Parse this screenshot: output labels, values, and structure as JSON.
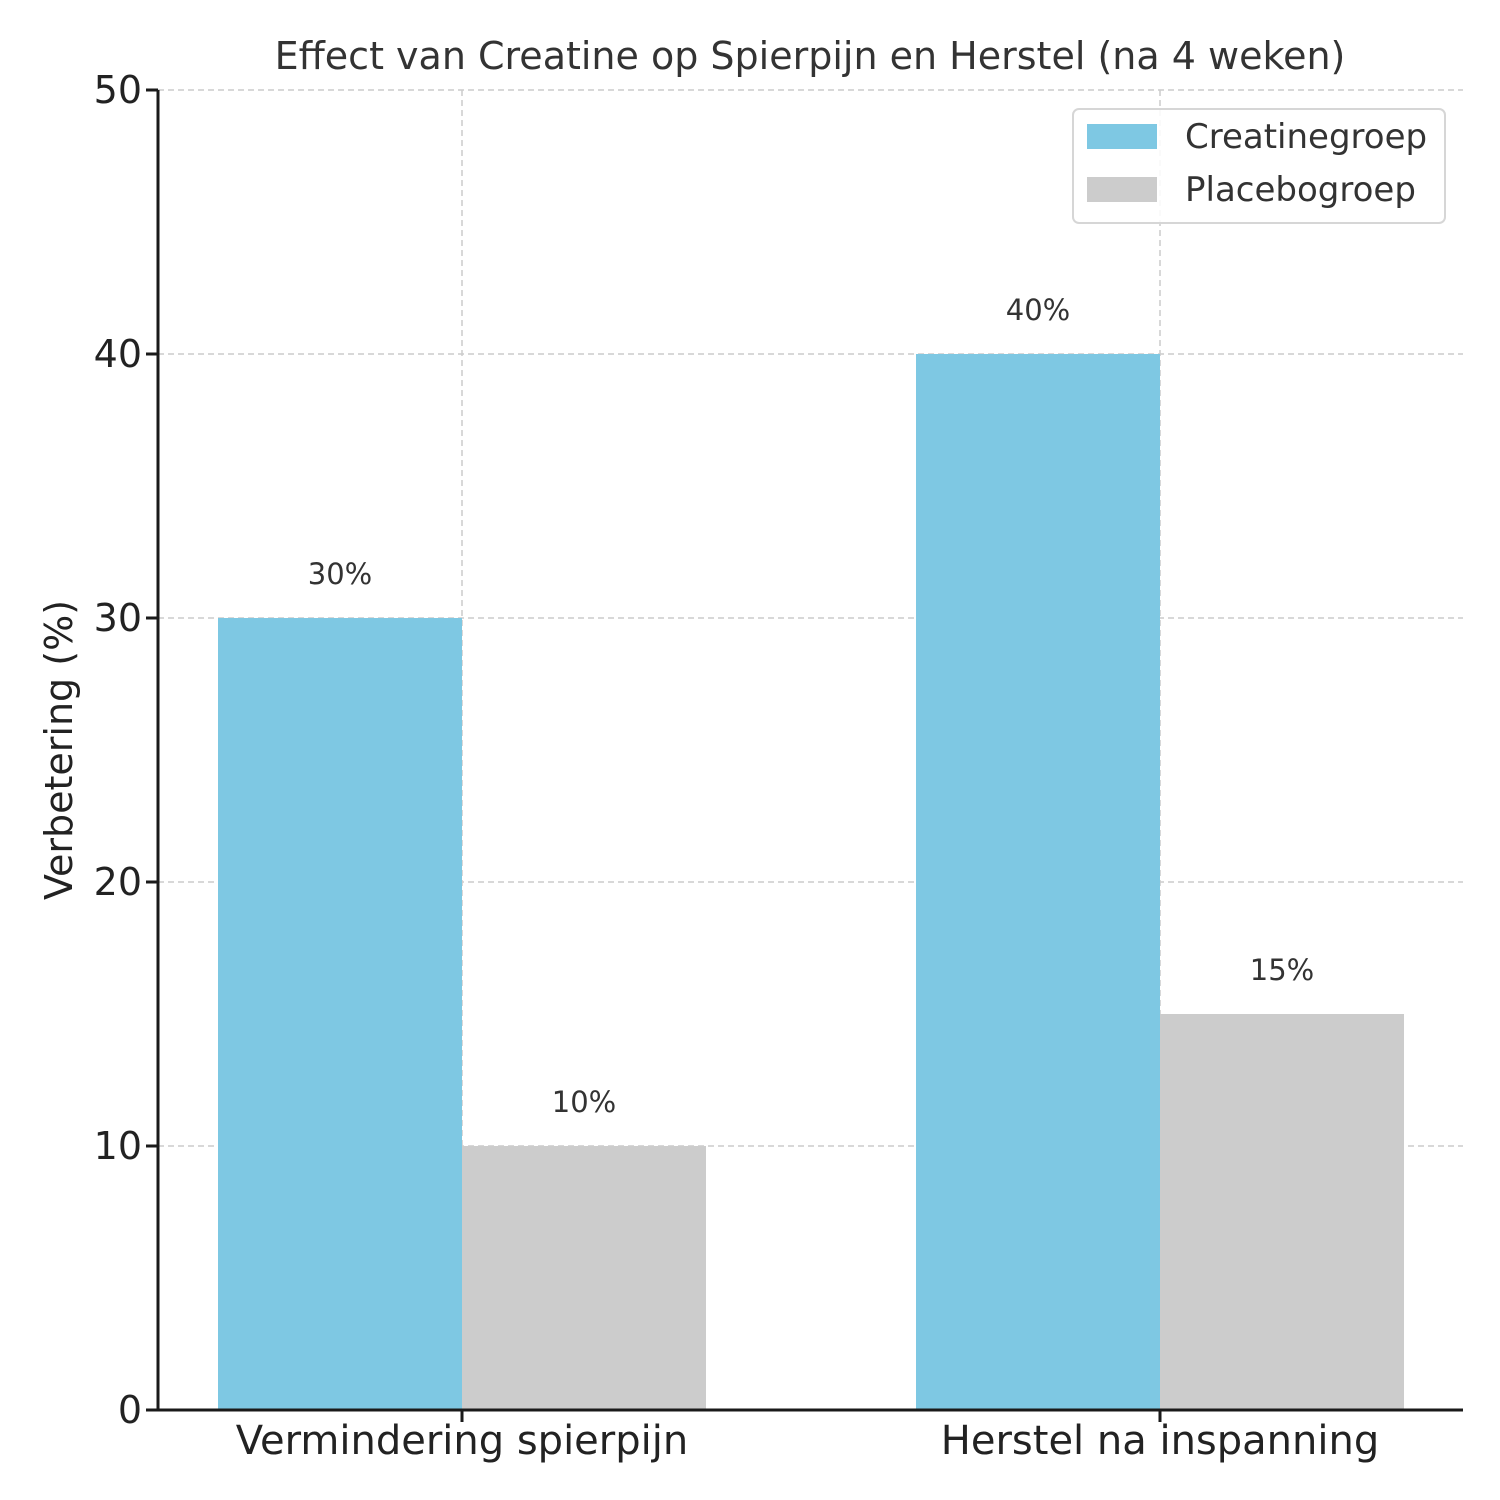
{
  "chart_data": {
    "type": "bar",
    "title": "Effect van Creatine op Spierpijn en Herstel (na 4 weken)",
    "xlabel": "",
    "ylabel": "Verbetering (%)",
    "ylim": [
      0,
      50
    ],
    "yticks": [
      0,
      10,
      20,
      30,
      40,
      50
    ],
    "ytick_labels": [
      "0",
      "10",
      "20",
      "30",
      "40",
      "50"
    ],
    "grid": true,
    "legend_position": "top-right",
    "categories": [
      "Vermindering spierpijn",
      "Herstel na inspanning"
    ],
    "series": [
      {
        "name": "Creatinegroep",
        "color": "#7ec8e3",
        "values": [
          30,
          40
        ],
        "labels": [
          "30%",
          "40%"
        ]
      },
      {
        "name": "Placebogroep",
        "color": "#cccccc",
        "values": [
          10,
          15
        ],
        "labels": [
          "10%",
          "15%"
        ]
      }
    ]
  }
}
